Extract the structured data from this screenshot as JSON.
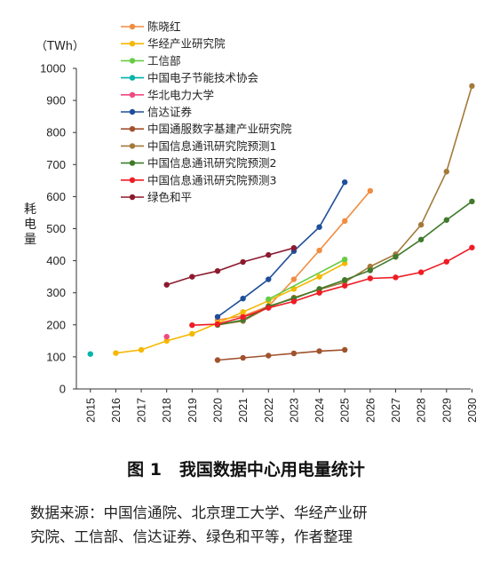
{
  "chart_data": {
    "type": "line",
    "unit_label": "（TWh）",
    "ylabel": "耗电量",
    "xlabel": "",
    "title": "",
    "ylim": [
      0,
      1000
    ],
    "yticks": [
      0,
      100,
      200,
      300,
      400,
      500,
      600,
      700,
      800,
      900,
      1000
    ],
    "x": [
      2015,
      2016,
      2017,
      2018,
      2019,
      2020,
      2021,
      2022,
      2023,
      2024,
      2025,
      2026,
      2027,
      2028,
      2029,
      2030
    ],
    "grid": false,
    "legend_position": "top-left",
    "series": [
      {
        "name": "陈晓红",
        "color": "#f28c3f",
        "points": [
          [
            2020,
            215
          ],
          [
            2021,
            228
          ],
          [
            2022,
            258
          ],
          [
            2023,
            342
          ],
          [
            2024,
            432
          ],
          [
            2025,
            524
          ],
          [
            2026,
            618
          ]
        ]
      },
      {
        "name": "华经产业研究院",
        "color": "#f5b800",
        "points": [
          [
            2016,
            112
          ],
          [
            2017,
            122
          ],
          [
            2018,
            150
          ],
          [
            2019,
            172
          ],
          [
            2020,
            205
          ],
          [
            2021,
            240
          ],
          [
            2022,
            275
          ],
          [
            2023,
            312
          ],
          [
            2024,
            350
          ],
          [
            2025,
            392
          ]
        ]
      },
      {
        "name": "工信部",
        "color": "#66cc44",
        "points": [
          [
            2022,
            280
          ],
          [
            2025,
            404
          ]
        ]
      },
      {
        "name": "中国电子节能技术协会",
        "color": "#00b3a8",
        "points": [
          [
            2015,
            109
          ]
        ]
      },
      {
        "name": "华北电力大学",
        "color": "#ee4a7f",
        "points": [
          [
            2018,
            163
          ]
        ]
      },
      {
        "name": "信达证券",
        "color": "#1f4e9a",
        "points": [
          [
            2020,
            225
          ],
          [
            2021,
            282
          ],
          [
            2022,
            342
          ],
          [
            2023,
            430
          ],
          [
            2024,
            505
          ],
          [
            2025,
            645
          ]
        ]
      },
      {
        "name": "中国通服数字基建产业研究院",
        "color": "#a0522d",
        "points": [
          [
            2020,
            90
          ],
          [
            2021,
            97
          ],
          [
            2022,
            104
          ],
          [
            2023,
            111
          ],
          [
            2024,
            118
          ],
          [
            2025,
            122
          ]
        ]
      },
      {
        "name": "中国信息通讯研究院预测1",
        "color": "#a37a3a",
        "points": [
          [
            2020,
            200
          ],
          [
            2021,
            212
          ],
          [
            2022,
            255
          ],
          [
            2023,
            285
          ],
          [
            2024,
            310
          ],
          [
            2025,
            333
          ],
          [
            2026,
            382
          ],
          [
            2027,
            420
          ],
          [
            2028,
            512
          ],
          [
            2029,
            678
          ],
          [
            2030,
            945
          ]
        ]
      },
      {
        "name": "中国信息通讯研究院预测2",
        "color": "#3f7a2a",
        "points": [
          [
            2020,
            200
          ],
          [
            2021,
            215
          ],
          [
            2022,
            258
          ],
          [
            2023,
            282
          ],
          [
            2024,
            312
          ],
          [
            2025,
            340
          ],
          [
            2026,
            370
          ],
          [
            2027,
            412
          ],
          [
            2028,
            466
          ],
          [
            2029,
            527
          ],
          [
            2030,
            585
          ]
        ]
      },
      {
        "name": "中国信息通讯研究院预测3",
        "color": "#ee1c25",
        "points": [
          [
            2019,
            199
          ],
          [
            2020,
            202
          ],
          [
            2021,
            224
          ],
          [
            2022,
            253
          ],
          [
            2023,
            273
          ],
          [
            2024,
            300
          ],
          [
            2025,
            322
          ],
          [
            2026,
            345
          ],
          [
            2027,
            348
          ],
          [
            2028,
            364
          ],
          [
            2029,
            397
          ],
          [
            2030,
            441
          ]
        ]
      },
      {
        "name": "绿色和平",
        "color": "#8b1a2e",
        "points": [
          [
            2018,
            325
          ],
          [
            2019,
            350
          ],
          [
            2020,
            368
          ],
          [
            2021,
            396
          ],
          [
            2022,
            418
          ],
          [
            2023,
            440
          ]
        ]
      }
    ]
  },
  "caption": {
    "label": "图 1",
    "text": "我国数据中心用电量统计"
  },
  "source": {
    "line1": "数据来源：中国信通院、北京理工大学、华经产业研",
    "line2": "究院、工信部、信达证券、绿色和平等，作者整理"
  }
}
